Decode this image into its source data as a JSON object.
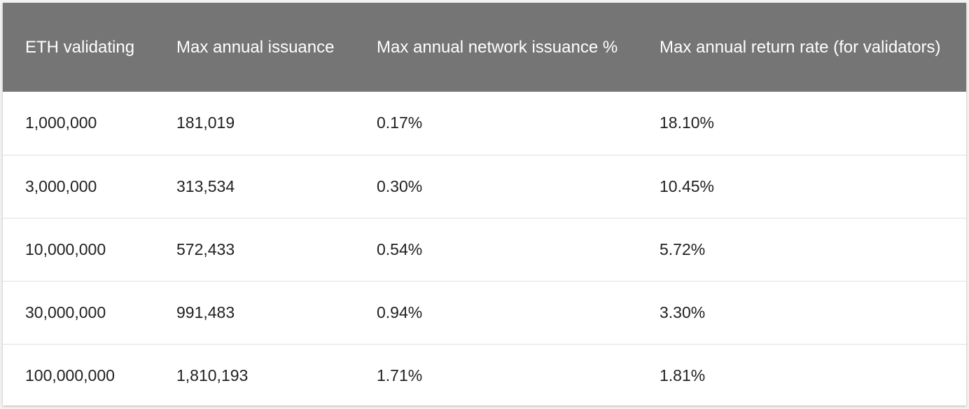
{
  "table": {
    "headers": [
      "ETH validating",
      "Max annual issuance",
      "Max annual network issuance %",
      "Max annual return rate (for validators)"
    ],
    "rows": [
      [
        "1,000,000",
        "181,019",
        "0.17%",
        "18.10%"
      ],
      [
        "3,000,000",
        "313,534",
        "0.30%",
        "10.45%"
      ],
      [
        "10,000,000",
        "572,433",
        "0.54%",
        "5.72%"
      ],
      [
        "30,000,000",
        "991,483",
        "0.94%",
        "3.30%"
      ],
      [
        "100,000,000",
        "1,810,193",
        "1.71%",
        "1.81%"
      ]
    ]
  }
}
